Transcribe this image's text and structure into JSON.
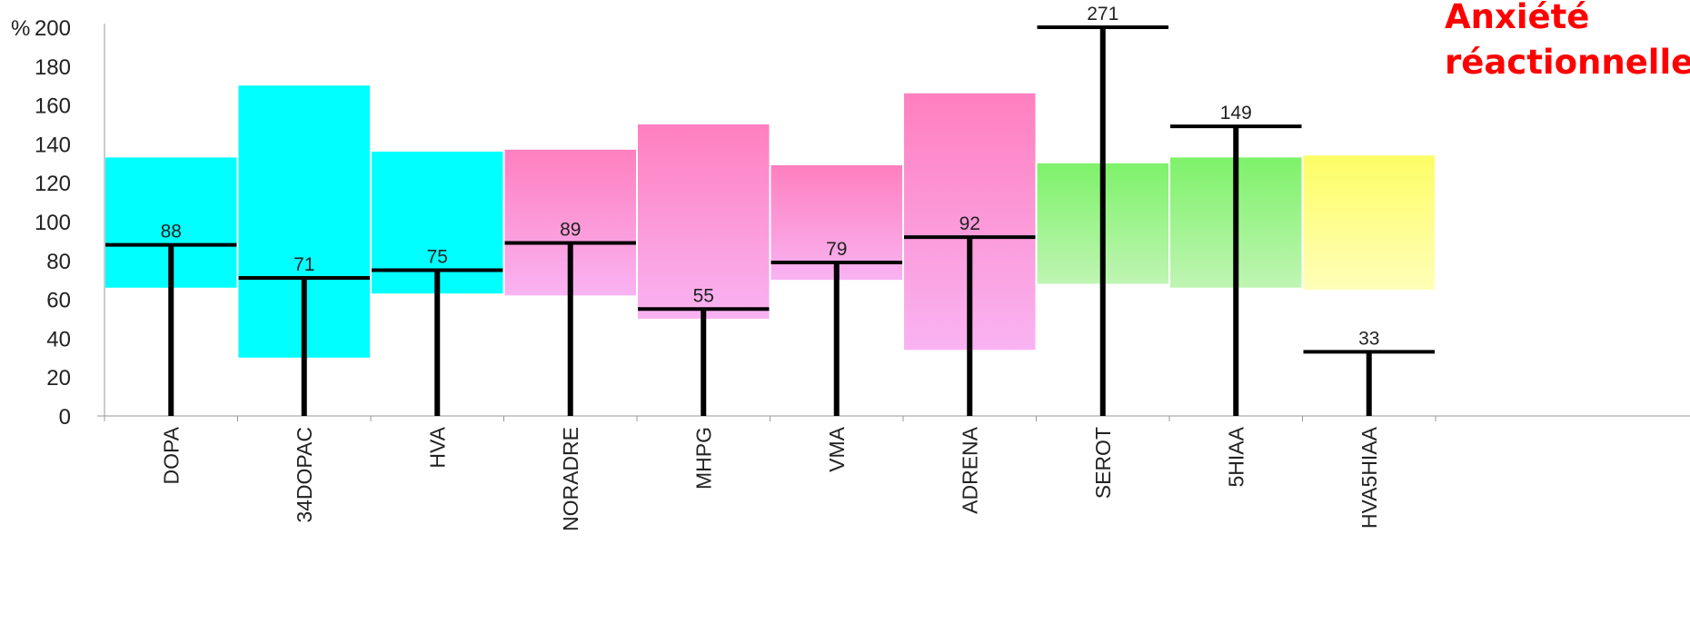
{
  "chart_data": {
    "type": "bar",
    "ylabel": "%",
    "ylim": [
      0,
      200
    ],
    "y_ticks": [
      "0",
      "20",
      "40",
      "60",
      "80",
      "100",
      "120",
      "140",
      "160",
      "180",
      "200"
    ],
    "categories": [
      "DOPA",
      "34DOPAC",
      "HVA",
      "NORADRE",
      "MHPG",
      "VMA",
      "ADRENA",
      "SEROT",
      "5HIAA",
      "HVA5HIAA"
    ],
    "values": [
      88,
      71,
      75,
      89,
      55,
      79,
      92,
      271,
      149,
      33
    ],
    "value_labels": [
      "88",
      "71",
      "75",
      "89",
      "55",
      "79",
      "92",
      "271",
      "149",
      "33"
    ],
    "reference_ranges": [
      {
        "low": 66,
        "high": 133
      },
      {
        "low": 30,
        "high": 170
      },
      {
        "low": 63,
        "high": 136
      },
      {
        "low": 62,
        "high": 137
      },
      {
        "low": 50,
        "high": 150
      },
      {
        "low": 70,
        "high": 129
      },
      {
        "low": 34,
        "high": 166
      },
      {
        "low": 68,
        "high": 130
      },
      {
        "low": 66,
        "high": 133
      },
      {
        "low": 65,
        "high": 134
      }
    ],
    "range_colors": [
      "cyan",
      "cyan",
      "cyan",
      "pink",
      "pink",
      "pink",
      "pink",
      "green",
      "green",
      "yellow"
    ],
    "colors": {
      "cyan": "#00ffff",
      "pink_top": "#ff7fbf",
      "pink_bottom": "#f9b3f2",
      "green_top": "#7ef26a",
      "green_bottom": "#bff5b3",
      "yellow_top": "#fdfd66",
      "yellow_bottom": "#ffffb8",
      "bar": "#000000",
      "annotation": "#ff0000"
    }
  },
  "annotation": {
    "line1": "Anxiété",
    "line2": "réactionnelle"
  }
}
